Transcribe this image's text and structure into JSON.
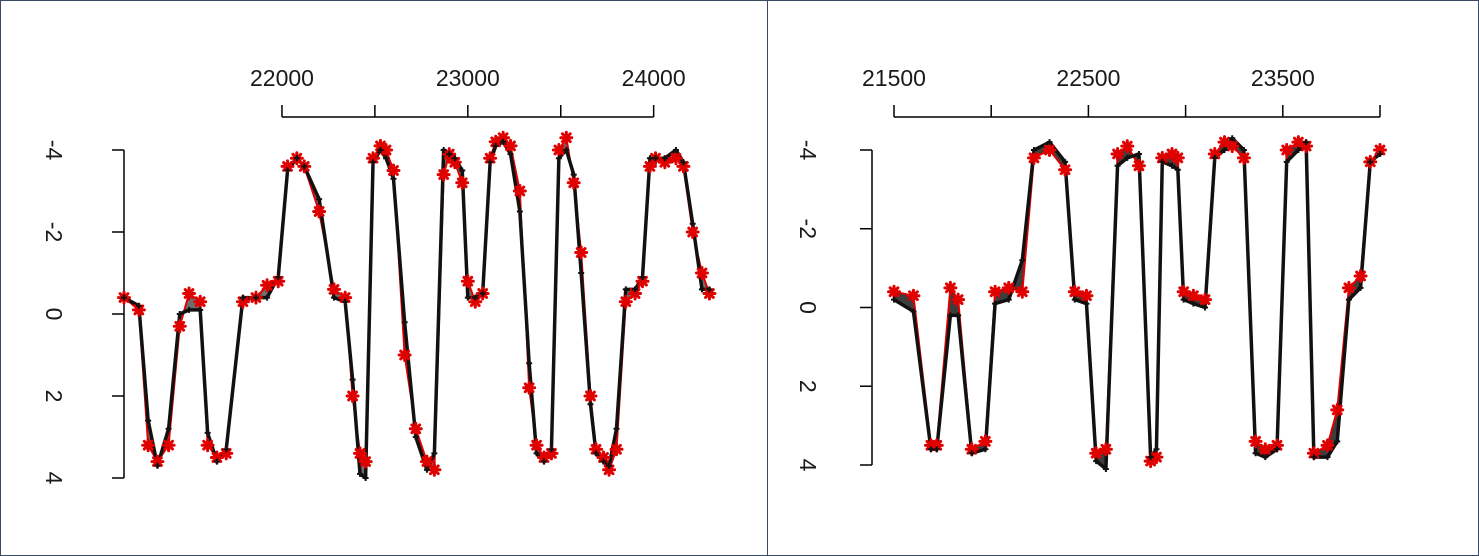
{
  "colors": {
    "frame": "#3a4a63",
    "axis": "#000000",
    "observed": "#e00000",
    "fitted": "#111111",
    "band": "#3d3d3d"
  },
  "chart_data": [
    {
      "type": "line",
      "panel": "left",
      "x_ticks": [
        22000,
        22500,
        23000,
        23500,
        24000
      ],
      "x_tick_labels": [
        "22000",
        "23000",
        "24000"
      ],
      "x_labeled_ticks": [
        22000,
        23000,
        24000
      ],
      "xlim": [
        21150,
        24400
      ],
      "y_ticks": [
        -4,
        -2,
        0,
        2,
        4
      ],
      "y_tick_labels": [
        "-4",
        "-2",
        "0",
        "2",
        "4"
      ],
      "ylim": [
        4,
        -4
      ],
      "grid": false,
      "series": [
        {
          "role": "observed",
          "color": "#e00000",
          "marker": "asterisk",
          "x": [
            21150,
            21230,
            21280,
            21330,
            21390,
            21450,
            21500,
            21560,
            21600,
            21650,
            21700,
            21790,
            21860,
            21920,
            21980,
            22030,
            22080,
            22120,
            22200,
            22280,
            22340,
            22380,
            22420,
            22450,
            22490,
            22530,
            22560,
            22600,
            22660,
            22720,
            22780,
            22820,
            22870,
            22900,
            22930,
            22970,
            23000,
            23040,
            23080,
            23120,
            23150,
            23190,
            23230,
            23280,
            23330,
            23370,
            23410,
            23450,
            23490,
            23530,
            23570,
            23610,
            23660,
            23690,
            23730,
            23760,
            23800,
            23850,
            23900,
            23940,
            23980,
            24010,
            24060,
            24120,
            24160,
            24210,
            24260,
            24300
          ],
          "y": [
            -0.4,
            -0.1,
            3.2,
            3.6,
            3.2,
            0.3,
            -0.5,
            -0.3,
            3.2,
            3.5,
            3.4,
            -0.3,
            -0.4,
            -0.7,
            -0.8,
            -3.6,
            -3.8,
            -3.6,
            -2.5,
            -0.6,
            -0.4,
            2.0,
            3.4,
            3.6,
            -3.8,
            -4.1,
            -4.0,
            -3.5,
            1.0,
            2.8,
            3.6,
            3.8,
            -3.4,
            -3.9,
            -3.7,
            -3.2,
            -0.8,
            -0.3,
            -0.5,
            -3.8,
            -4.2,
            -4.3,
            -4.1,
            -3.0,
            1.8,
            3.2,
            3.5,
            3.4,
            -4.0,
            -4.3,
            -3.2,
            -1.5,
            2.0,
            3.3,
            3.5,
            3.8,
            3.3,
            -0.3,
            -0.5,
            -0.8,
            -3.6,
            -3.8,
            -3.7,
            -3.8,
            -3.6,
            -2.0,
            -1.0,
            -0.5
          ]
        },
        {
          "role": "fitted",
          "color": "#111111",
          "marker": "plus",
          "x": [
            21150,
            21230,
            21280,
            21330,
            21390,
            21450,
            21500,
            21560,
            21600,
            21650,
            21700,
            21790,
            21860,
            21920,
            21980,
            22030,
            22080,
            22120,
            22200,
            22280,
            22340,
            22380,
            22420,
            22450,
            22490,
            22530,
            22560,
            22600,
            22660,
            22720,
            22780,
            22820,
            22870,
            22900,
            22930,
            22970,
            23000,
            23040,
            23080,
            23120,
            23150,
            23190,
            23230,
            23280,
            23330,
            23370,
            23410,
            23450,
            23490,
            23530,
            23570,
            23610,
            23660,
            23690,
            23730,
            23760,
            23800,
            23850,
            23900,
            23940,
            23980,
            24010,
            24060,
            24120,
            24160,
            24210,
            24260,
            24300
          ],
          "y": [
            -0.4,
            -0.2,
            2.6,
            3.7,
            2.8,
            0.0,
            -0.1,
            -0.1,
            2.9,
            3.6,
            3.3,
            -0.4,
            -0.4,
            -0.4,
            -0.9,
            -3.5,
            -3.8,
            -3.6,
            -2.8,
            -0.4,
            -0.3,
            1.6,
            3.9,
            4.0,
            -3.7,
            -4.0,
            -3.8,
            -3.3,
            0.2,
            3.0,
            3.8,
            3.4,
            -4.0,
            -3.9,
            -3.8,
            -3.5,
            -0.4,
            -0.4,
            -0.5,
            -3.7,
            -4.1,
            -4.2,
            -3.9,
            -2.5,
            1.2,
            3.4,
            3.6,
            3.3,
            -3.8,
            -4.0,
            -3.4,
            -1.0,
            2.2,
            3.4,
            3.6,
            3.7,
            2.8,
            -0.6,
            -0.6,
            -0.9,
            -3.8,
            -3.8,
            -3.8,
            -4.0,
            -3.7,
            -2.2,
            -0.6,
            -0.6
          ]
        }
      ]
    },
    {
      "type": "area",
      "panel": "right",
      "x_ticks": [
        21500,
        22000,
        22500,
        23000,
        23500,
        24000
      ],
      "x_tick_labels": [
        "21500",
        "22500",
        "23500"
      ],
      "x_labeled_ticks": [
        21500,
        22500,
        23500
      ],
      "xlim": [
        21500,
        24000
      ],
      "y_ticks": [
        -4,
        -2,
        0,
        2,
        4
      ],
      "y_tick_labels": [
        "-4",
        "-2",
        "0",
        "2",
        "4"
      ],
      "ylim": [
        4,
        -4
      ],
      "grid": false,
      "series": [
        {
          "role": "observed",
          "color": "#e00000",
          "marker": "asterisk",
          "x": [
            21500,
            21600,
            21690,
            21720,
            21790,
            21830,
            21900,
            21970,
            22020,
            22090,
            22160,
            22220,
            22300,
            22380,
            22430,
            22490,
            22540,
            22590,
            22650,
            22700,
            22760,
            22820,
            22850,
            22880,
            22930,
            22960,
            22990,
            23040,
            23100,
            23150,
            23200,
            23240,
            23300,
            23360,
            23410,
            23470,
            23520,
            23580,
            23620,
            23660,
            23730,
            23780,
            23840,
            23900,
            23950,
            24000
          ],
          "y": [
            -0.4,
            -0.3,
            3.5,
            3.5,
            -0.5,
            -0.2,
            3.6,
            3.4,
            -0.4,
            -0.5,
            -0.4,
            -3.8,
            -4.0,
            -3.5,
            -0.4,
            -0.3,
            3.7,
            3.6,
            -3.9,
            -4.1,
            -3.6,
            3.9,
            3.8,
            -3.8,
            -3.9,
            -3.8,
            -0.4,
            -0.3,
            -0.2,
            -3.9,
            -4.2,
            -4.1,
            -3.8,
            3.4,
            3.6,
            3.5,
            -4.0,
            -4.2,
            -4.1,
            3.7,
            3.5,
            2.6,
            -0.5,
            -0.8,
            -3.7,
            -4.0
          ]
        },
        {
          "role": "fitted",
          "color": "#111111",
          "marker": "plus",
          "x": [
            21500,
            21600,
            21690,
            21720,
            21790,
            21830,
            21900,
            21970,
            22020,
            22090,
            22160,
            22220,
            22300,
            22380,
            22430,
            22490,
            22540,
            22590,
            22650,
            22700,
            22760,
            22820,
            22850,
            22880,
            22930,
            22960,
            22990,
            23040,
            23100,
            23150,
            23200,
            23240,
            23300,
            23360,
            23410,
            23470,
            23520,
            23580,
            23620,
            23660,
            23730,
            23780,
            23840,
            23900,
            23950,
            24000
          ],
          "y": [
            -0.2,
            0.1,
            3.6,
            3.6,
            0.2,
            0.2,
            3.7,
            3.6,
            -0.1,
            -0.2,
            -1.2,
            -4.0,
            -4.2,
            -3.7,
            -0.2,
            -0.1,
            3.9,
            4.1,
            -3.6,
            -3.8,
            -3.9,
            3.8,
            3.6,
            -3.7,
            -3.6,
            -3.5,
            -0.2,
            -0.1,
            0.0,
            -3.8,
            -4.0,
            -4.3,
            -4.0,
            3.7,
            3.8,
            3.6,
            -3.7,
            -4.0,
            -4.2,
            3.8,
            3.8,
            3.4,
            -0.2,
            -0.5,
            -3.7,
            -3.9
          ]
        }
      ]
    }
  ]
}
